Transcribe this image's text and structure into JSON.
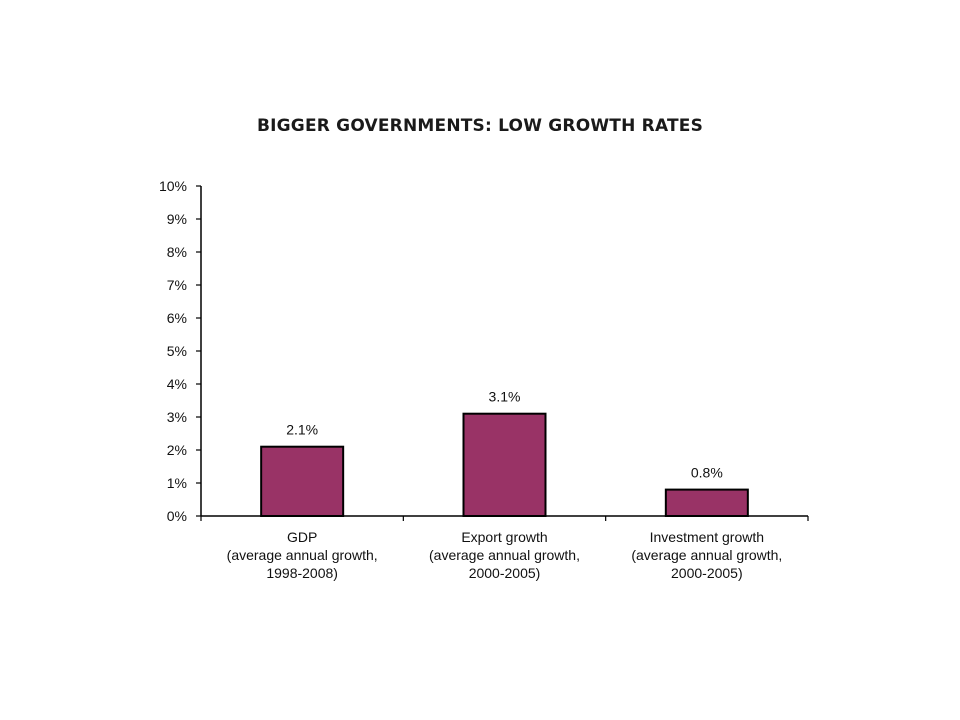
{
  "chart_data": {
    "type": "bar",
    "title": "BIGGER GOVERNMENTS: LOW GROWTH RATES",
    "categories": [
      [
        "GDP",
        "(average annual growth,",
        "1998-2008)"
      ],
      [
        "Export growth",
        "(average annual growth,",
        "2000-2005)"
      ],
      [
        "Investment growth",
        "(average annual growth,",
        "2000-2005)"
      ]
    ],
    "values": [
      2.1,
      3.1,
      0.8
    ],
    "data_labels": [
      "2.1%",
      "3.1%",
      "0.8%"
    ],
    "ylim": [
      0,
      10
    ],
    "y_ticks": [
      0,
      1,
      2,
      3,
      4,
      5,
      6,
      7,
      8,
      9,
      10
    ],
    "y_tick_labels": [
      "0%",
      "1%",
      "2%",
      "3%",
      "4%",
      "5%",
      "6%",
      "7%",
      "8%",
      "9%",
      "10%"
    ],
    "xlabel": "",
    "ylabel": "",
    "grid": false,
    "legend": "none",
    "bar_color": "#993366",
    "bar_edge_color": "#000000"
  }
}
